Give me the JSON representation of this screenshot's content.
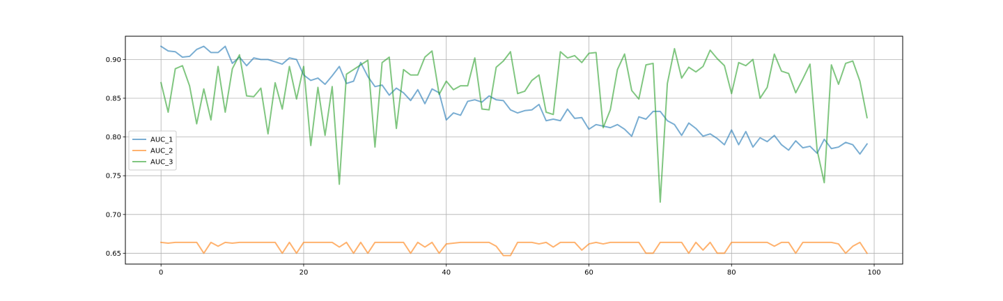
{
  "chart_data": {
    "type": "line",
    "title": "",
    "xlabel": "",
    "ylabel": "",
    "xlim": [
      -5,
      104
    ],
    "ylim": [
      0.636,
      0.93
    ],
    "xticks": [
      0,
      20,
      40,
      60,
      80,
      100
    ],
    "yticks": [
      0.65,
      0.7,
      0.75,
      0.8,
      0.85,
      0.9
    ],
    "ytick_labels": [
      "0.65",
      "0.70",
      "0.75",
      "0.80",
      "0.85",
      "0.90"
    ],
    "grid": true,
    "legend_position": "center-left",
    "series": [
      {
        "name": "AUC_1",
        "color": "#1f77b4",
        "values": [
          0.917,
          0.911,
          0.91,
          0.903,
          0.904,
          0.913,
          0.917,
          0.909,
          0.909,
          0.917,
          0.895,
          0.903,
          0.892,
          0.902,
          0.9,
          0.9,
          0.897,
          0.894,
          0.902,
          0.9,
          0.88,
          0.873,
          0.876,
          0.868,
          0.879,
          0.891,
          0.869,
          0.872,
          0.896,
          0.878,
          0.865,
          0.867,
          0.854,
          0.863,
          0.857,
          0.847,
          0.861,
          0.843,
          0.862,
          0.857,
          0.822,
          0.831,
          0.828,
          0.846,
          0.848,
          0.845,
          0.853,
          0.848,
          0.847,
          0.835,
          0.831,
          0.834,
          0.835,
          0.842,
          0.821,
          0.823,
          0.821,
          0.836,
          0.824,
          0.825,
          0.81,
          0.816,
          0.814,
          0.812,
          0.816,
          0.81,
          0.801,
          0.826,
          0.823,
          0.833,
          0.833,
          0.821,
          0.816,
          0.802,
          0.818,
          0.811,
          0.801,
          0.804,
          0.798,
          0.79,
          0.809,
          0.79,
          0.807,
          0.787,
          0.799,
          0.794,
          0.802,
          0.79,
          0.783,
          0.795,
          0.786,
          0.788,
          0.779,
          0.797,
          0.785,
          0.787,
          0.793,
          0.79,
          0.778,
          0.791
        ]
      },
      {
        "name": "AUC_2",
        "color": "#ff7f0e",
        "values": [
          0.664,
          0.663,
          0.664,
          0.664,
          0.664,
          0.664,
          0.65,
          0.664,
          0.659,
          0.664,
          0.663,
          0.664,
          0.664,
          0.664,
          0.664,
          0.664,
          0.664,
          0.65,
          0.664,
          0.65,
          0.664,
          0.664,
          0.664,
          0.664,
          0.664,
          0.658,
          0.664,
          0.65,
          0.664,
          0.65,
          0.664,
          0.664,
          0.664,
          0.664,
          0.664,
          0.65,
          0.664,
          0.658,
          0.664,
          0.65,
          0.662,
          0.663,
          0.664,
          0.664,
          0.664,
          0.664,
          0.664,
          0.659,
          0.647,
          0.647,
          0.664,
          0.664,
          0.664,
          0.662,
          0.664,
          0.658,
          0.664,
          0.664,
          0.664,
          0.654,
          0.662,
          0.664,
          0.662,
          0.664,
          0.664,
          0.664,
          0.664,
          0.664,
          0.65,
          0.65,
          0.664,
          0.664,
          0.664,
          0.664,
          0.65,
          0.664,
          0.654,
          0.664,
          0.65,
          0.65,
          0.664,
          0.664,
          0.664,
          0.664,
          0.664,
          0.664,
          0.659,
          0.664,
          0.664,
          0.65,
          0.664,
          0.664,
          0.664,
          0.664,
          0.664,
          0.662,
          0.65,
          0.659,
          0.664,
          0.65
        ]
      },
      {
        "name": "AUC_3",
        "color": "#2ca02c",
        "values": [
          0.87,
          0.832,
          0.888,
          0.892,
          0.866,
          0.817,
          0.862,
          0.822,
          0.891,
          0.832,
          0.888,
          0.906,
          0.853,
          0.852,
          0.863,
          0.804,
          0.87,
          0.836,
          0.891,
          0.849,
          0.891,
          0.789,
          0.864,
          0.802,
          0.865,
          0.739,
          0.881,
          0.887,
          0.893,
          0.899,
          0.787,
          0.896,
          0.903,
          0.811,
          0.887,
          0.88,
          0.88,
          0.903,
          0.911,
          0.855,
          0.872,
          0.861,
          0.866,
          0.866,
          0.902,
          0.836,
          0.835,
          0.89,
          0.898,
          0.91,
          0.856,
          0.859,
          0.873,
          0.88,
          0.832,
          0.829,
          0.91,
          0.902,
          0.905,
          0.896,
          0.908,
          0.909,
          0.812,
          0.835,
          0.887,
          0.907,
          0.86,
          0.849,
          0.893,
          0.895,
          0.716,
          0.869,
          0.914,
          0.876,
          0.89,
          0.884,
          0.891,
          0.912,
          0.901,
          0.892,
          0.856,
          0.896,
          0.892,
          0.9,
          0.85,
          0.864,
          0.907,
          0.885,
          0.882,
          0.857,
          0.875,
          0.894,
          0.783,
          0.741,
          0.893,
          0.868,
          0.895,
          0.898,
          0.872,
          0.825
        ]
      }
    ]
  }
}
